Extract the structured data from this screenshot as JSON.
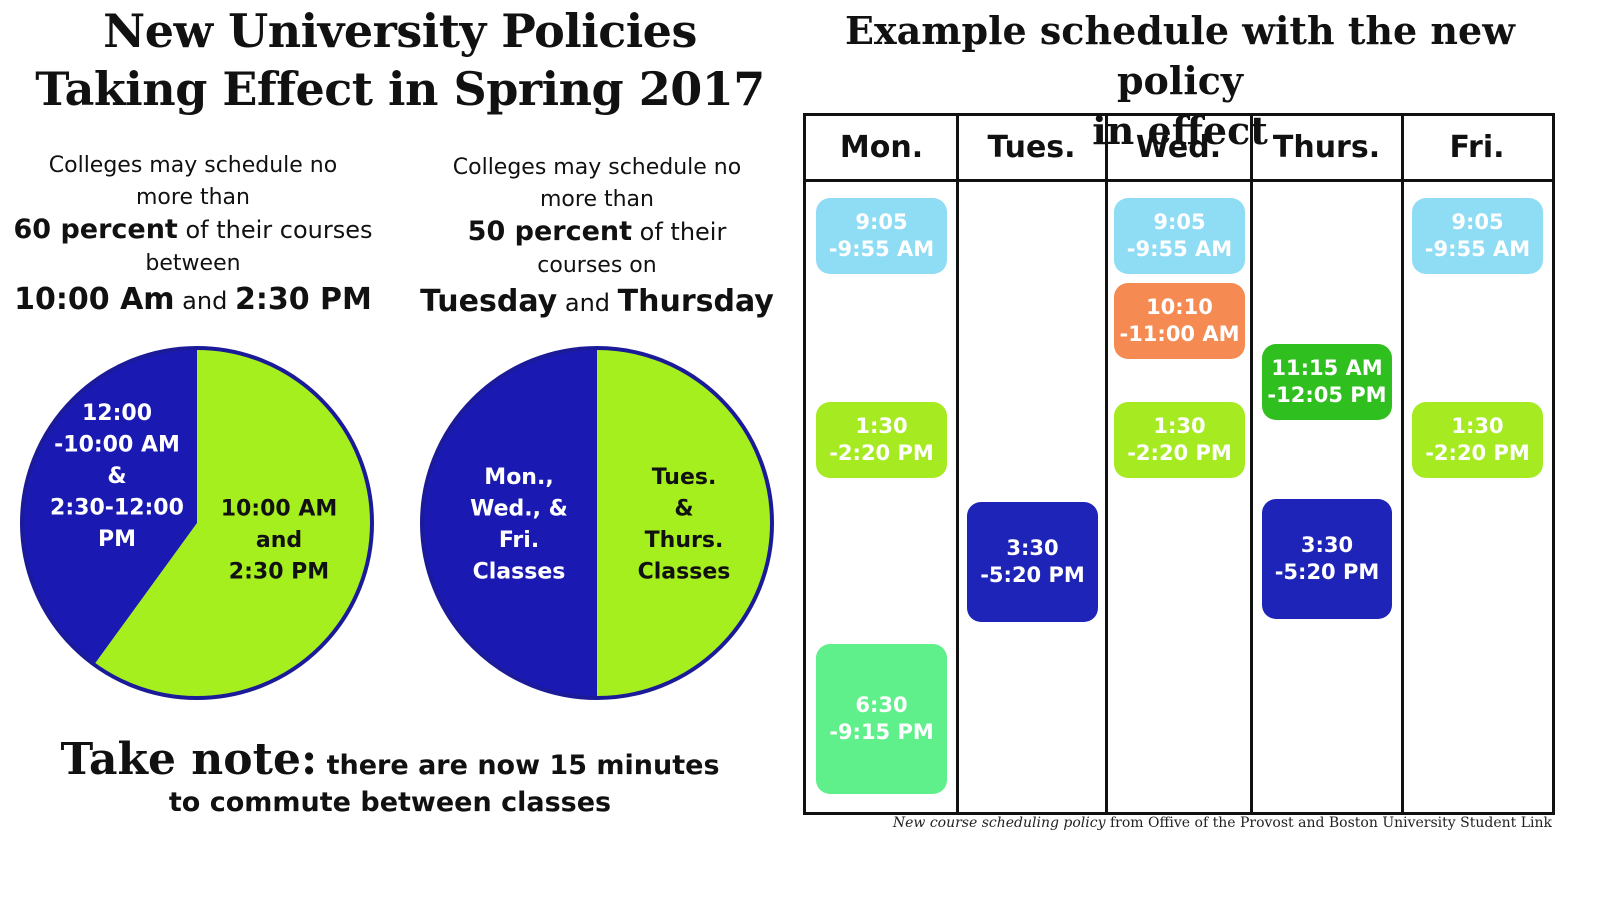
{
  "left": {
    "title_lines": [
      "New University Policies",
      "Taking Effect in Spring 2017"
    ],
    "rule1": {
      "line1": "Colleges may schedule no",
      "line2": "more than",
      "pct": "60 percent",
      "line3_rest": " of their courses",
      "line4": "between",
      "time_a": "10:00 Am",
      "and": " and ",
      "time_b": "2:30 PM"
    },
    "rule2": {
      "line1": "Colleges may schedule no",
      "line2": "more than",
      "pct": "50 percent",
      "line3_rest": " of their",
      "line4": "courses on",
      "day_a": "Tuesday",
      "and": " and ",
      "day_b": "Thursday"
    },
    "note": {
      "lead": "Take note:",
      "rest1": " there are now 15 minutes",
      "rest2": "to commute between classes"
    }
  },
  "right": {
    "title_lines": [
      "Example schedule with the new policy",
      "in effect"
    ],
    "days": [
      "Mon.",
      "Tues.",
      "Wed.",
      "Thurs.",
      "Fri."
    ],
    "source": {
      "italic": "New course scheduling policy",
      "rest": " from Offive of the Provost  and Boston University Student Link"
    }
  },
  "colors": {
    "pie_blue": "#1a1ab3",
    "pie_green": "#a6ef1e",
    "pie_border": "#1b1b9a",
    "light_blue": "#8fdcf5",
    "orange": "#f58a52",
    "lime": "#a6ea22",
    "dark_green": "#2fbf1e",
    "navy": "#1f24b8",
    "mint": "#5ff08c"
  },
  "chart_data": [
    {
      "type": "pie",
      "title": "",
      "slices": [
        {
          "label": "10:00 AM and 2:30 PM",
          "label_lines": [
            "10:00 AM",
            "and",
            "2:30 PM"
          ],
          "value": 60,
          "color": "#a6ef1e"
        },
        {
          "label": "12:00 -10:00 AM & 2:30-12:00 PM",
          "label_lines": [
            "12:00",
            "-10:00 AM",
            "&",
            "2:30-12:00",
            "PM"
          ],
          "value": 40,
          "color": "#1a1ab3"
        }
      ]
    },
    {
      "type": "pie",
      "title": "",
      "slices": [
        {
          "label": "Tues. & Thurs. Classes",
          "label_lines": [
            "Tues.",
            "&",
            "Thurs.",
            "Classes"
          ],
          "value": 50,
          "color": "#a6ef1e"
        },
        {
          "label": "Mon., Wed., & Fri. Classes",
          "label_lines": [
            "Mon.,",
            "Wed., &",
            "Fri.",
            "Classes"
          ],
          "value": 50,
          "color": "#1a1ab3"
        }
      ]
    },
    {
      "type": "table",
      "title": "Example schedule with the new policy in effect",
      "columns": [
        "Mon.",
        "Tues.",
        "Wed.",
        "Thurs.",
        "Fri."
      ],
      "classes": [
        {
          "day": "Mon.",
          "lines": [
            "9:05",
            "-9:55 AM"
          ],
          "color": "#8fdcf5"
        },
        {
          "day": "Mon.",
          "lines": [
            "1:30",
            "-2:20 PM"
          ],
          "color": "#a6ea22"
        },
        {
          "day": "Mon.",
          "lines": [
            "6:30",
            "-9:15 PM"
          ],
          "color": "#5ff08c"
        },
        {
          "day": "Tues.",
          "lines": [
            "3:30",
            "-5:20 PM"
          ],
          "color": "#1f24b8"
        },
        {
          "day": "Wed.",
          "lines": [
            "9:05",
            "-9:55 AM"
          ],
          "color": "#8fdcf5"
        },
        {
          "day": "Wed.",
          "lines": [
            "10:10",
            "-11:00 AM"
          ],
          "color": "#f58a52"
        },
        {
          "day": "Wed.",
          "lines": [
            "1:30",
            "-2:20 PM"
          ],
          "color": "#a6ea22"
        },
        {
          "day": "Thurs.",
          "lines": [
            "11:15 AM",
            "-12:05 PM"
          ],
          "color": "#2fbf1e"
        },
        {
          "day": "Thurs.",
          "lines": [
            "3:30",
            "-5:20 PM"
          ],
          "color": "#1f24b8"
        },
        {
          "day": "Fri.",
          "lines": [
            "9:05",
            "-9:55 AM"
          ],
          "color": "#8fdcf5"
        },
        {
          "day": "Fri.",
          "lines": [
            "1:30",
            "-2:20 PM"
          ],
          "color": "#a6ea22"
        }
      ]
    }
  ]
}
